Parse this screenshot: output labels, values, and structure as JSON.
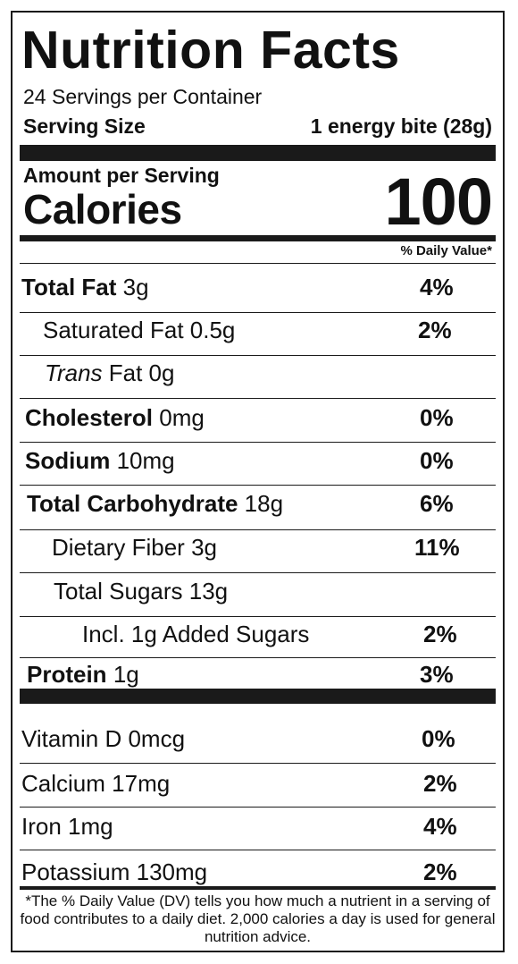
{
  "title": "Nutrition Facts",
  "servings_per_container": "24 Servings per Container",
  "serving_size": {
    "label": "Serving Size",
    "value": "1 energy bite (28g)"
  },
  "amount_per_serving": "Amount per Serving",
  "calories": {
    "label": "Calories",
    "value": "100"
  },
  "daily_value_header": "% Daily Value*",
  "nutrients": [
    {
      "name": "Total Fat",
      "amount": "3g",
      "dv": "4%"
    },
    {
      "name": "Saturated Fat",
      "amount": "0.5g",
      "dv": "2%"
    },
    {
      "name": "Trans",
      "amount": "Fat 0g",
      "dv": ""
    },
    {
      "name": "Cholesterol",
      "amount": "0mg",
      "dv": "0%"
    },
    {
      "name": "Sodium",
      "amount": "10mg",
      "dv": "0%"
    },
    {
      "name": "Total Carbohydrate",
      "amount": "18g",
      "dv": "6%"
    },
    {
      "name": "Dietary Fiber",
      "amount": "3g",
      "dv": "11%"
    },
    {
      "name": "Total Sugars",
      "amount": "13g",
      "dv": ""
    },
    {
      "name": "Incl. 1g Added Sugars",
      "amount": "",
      "dv": "2%"
    },
    {
      "name": "Protein",
      "amount": "1g",
      "dv": "3%"
    }
  ],
  "vitamins": [
    {
      "name": "Vitamin D",
      "amount": "0mcg",
      "dv": "0%"
    },
    {
      "name": "Calcium",
      "amount": "17mg",
      "dv": "2%"
    },
    {
      "name": "Iron",
      "amount": "1mg",
      "dv": "4%"
    },
    {
      "name": "Potassium",
      "amount": "130mg",
      "dv": "2%"
    }
  ],
  "footnote": "*The % Daily Value (DV) tells you how much a nutrient in a serving of food contributes to a daily diet. 2,000 calories a day is used for general nutrition advice."
}
